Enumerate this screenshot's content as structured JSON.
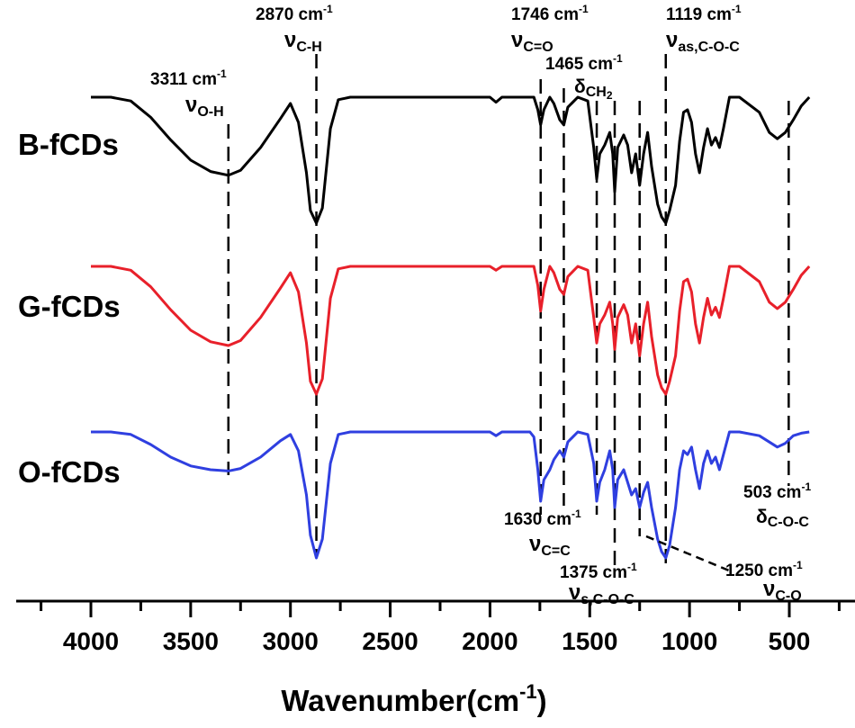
{
  "chart_data": {
    "type": "line",
    "title": "",
    "xlabel": "Wavenumber(cm",
    "xlabel_sup": "-1",
    "xlabel_close": ")",
    "ylabel": "",
    "xlim": [
      4200,
      350
    ],
    "x_reversed": true,
    "x_ticks": [
      4000,
      3500,
      3000,
      2500,
      2000,
      1500,
      1000,
      500
    ],
    "grid": false,
    "series": [
      {
        "name": "B-fCDs",
        "color": "#000000",
        "points": [
          [
            4000,
            100
          ],
          [
            3900,
            100
          ],
          [
            3800,
            97
          ],
          [
            3700,
            84
          ],
          [
            3600,
            66
          ],
          [
            3500,
            50
          ],
          [
            3400,
            41
          ],
          [
            3311,
            38
          ],
          [
            3250,
            42
          ],
          [
            3150,
            60
          ],
          [
            3050,
            83
          ],
          [
            3000,
            95
          ],
          [
            2960,
            80
          ],
          [
            2920,
            40
          ],
          [
            2900,
            10
          ],
          [
            2870,
            0
          ],
          [
            2840,
            12
          ],
          [
            2800,
            75
          ],
          [
            2760,
            98
          ],
          [
            2700,
            100
          ],
          [
            2300,
            100
          ],
          [
            2000,
            100
          ],
          [
            1970,
            96
          ],
          [
            1940,
            100
          ],
          [
            1780,
            100
          ],
          [
            1760,
            90
          ],
          [
            1746,
            78
          ],
          [
            1730,
            90
          ],
          [
            1700,
            100
          ],
          [
            1680,
            95
          ],
          [
            1650,
            82
          ],
          [
            1630,
            78
          ],
          [
            1610,
            92
          ],
          [
            1560,
            100
          ],
          [
            1510,
            97
          ],
          [
            1480,
            60
          ],
          [
            1465,
            35
          ],
          [
            1450,
            55
          ],
          [
            1425,
            62
          ],
          [
            1400,
            72
          ],
          [
            1385,
            55
          ],
          [
            1375,
            25
          ],
          [
            1360,
            60
          ],
          [
            1330,
            70
          ],
          [
            1310,
            62
          ],
          [
            1290,
            40
          ],
          [
            1270,
            55
          ],
          [
            1250,
            30
          ],
          [
            1230,
            55
          ],
          [
            1210,
            72
          ],
          [
            1190,
            45
          ],
          [
            1160,
            15
          ],
          [
            1140,
            5
          ],
          [
            1119,
            0
          ],
          [
            1100,
            10
          ],
          [
            1070,
            30
          ],
          [
            1050,
            65
          ],
          [
            1030,
            88
          ],
          [
            1010,
            90
          ],
          [
            990,
            80
          ],
          [
            970,
            55
          ],
          [
            950,
            40
          ],
          [
            930,
            60
          ],
          [
            910,
            75
          ],
          [
            890,
            62
          ],
          [
            870,
            68
          ],
          [
            850,
            60
          ],
          [
            830,
            75
          ],
          [
            800,
            100
          ],
          [
            750,
            100
          ],
          [
            650,
            88
          ],
          [
            600,
            72
          ],
          [
            560,
            67
          ],
          [
            520,
            72
          ],
          [
            480,
            82
          ],
          [
            440,
            93
          ],
          [
            400,
            100
          ]
        ]
      },
      {
        "name": "G-fCDs",
        "color": "#e8202a",
        "points": [
          [
            4000,
            100
          ],
          [
            3900,
            100
          ],
          [
            3800,
            97
          ],
          [
            3700,
            84
          ],
          [
            3600,
            66
          ],
          [
            3500,
            50
          ],
          [
            3400,
            41
          ],
          [
            3311,
            38
          ],
          [
            3250,
            42
          ],
          [
            3150,
            60
          ],
          [
            3050,
            83
          ],
          [
            3000,
            95
          ],
          [
            2960,
            80
          ],
          [
            2920,
            40
          ],
          [
            2900,
            10
          ],
          [
            2870,
            0
          ],
          [
            2840,
            12
          ],
          [
            2800,
            75
          ],
          [
            2760,
            98
          ],
          [
            2700,
            100
          ],
          [
            2300,
            100
          ],
          [
            2000,
            100
          ],
          [
            1970,
            97
          ],
          [
            1940,
            100
          ],
          [
            1780,
            100
          ],
          [
            1760,
            85
          ],
          [
            1746,
            65
          ],
          [
            1730,
            82
          ],
          [
            1700,
            100
          ],
          [
            1680,
            95
          ],
          [
            1650,
            82
          ],
          [
            1630,
            78
          ],
          [
            1610,
            92
          ],
          [
            1560,
            100
          ],
          [
            1510,
            97
          ],
          [
            1480,
            60
          ],
          [
            1465,
            40
          ],
          [
            1450,
            55
          ],
          [
            1425,
            62
          ],
          [
            1400,
            72
          ],
          [
            1385,
            55
          ],
          [
            1375,
            35
          ],
          [
            1360,
            60
          ],
          [
            1330,
            70
          ],
          [
            1310,
            62
          ],
          [
            1290,
            40
          ],
          [
            1270,
            55
          ],
          [
            1250,
            30
          ],
          [
            1230,
            55
          ],
          [
            1210,
            72
          ],
          [
            1190,
            45
          ],
          [
            1160,
            15
          ],
          [
            1140,
            5
          ],
          [
            1119,
            0
          ],
          [
            1100,
            10
          ],
          [
            1070,
            30
          ],
          [
            1050,
            65
          ],
          [
            1030,
            88
          ],
          [
            1010,
            90
          ],
          [
            990,
            80
          ],
          [
            970,
            55
          ],
          [
            950,
            40
          ],
          [
            930,
            60
          ],
          [
            910,
            75
          ],
          [
            890,
            62
          ],
          [
            870,
            68
          ],
          [
            850,
            60
          ],
          [
            830,
            75
          ],
          [
            800,
            100
          ],
          [
            750,
            100
          ],
          [
            650,
            88
          ],
          [
            600,
            72
          ],
          [
            560,
            67
          ],
          [
            520,
            72
          ],
          [
            480,
            82
          ],
          [
            440,
            93
          ],
          [
            400,
            100
          ]
        ]
      },
      {
        "name": "O-fCDs",
        "color": "#2f3fe0",
        "points": [
          [
            4000,
            100
          ],
          [
            3900,
            100
          ],
          [
            3800,
            98
          ],
          [
            3700,
            90
          ],
          [
            3600,
            80
          ],
          [
            3500,
            73
          ],
          [
            3400,
            70
          ],
          [
            3311,
            69
          ],
          [
            3250,
            71
          ],
          [
            3150,
            80
          ],
          [
            3050,
            93
          ],
          [
            3000,
            98
          ],
          [
            2960,
            85
          ],
          [
            2920,
            50
          ],
          [
            2900,
            18
          ],
          [
            2870,
            0
          ],
          [
            2840,
            15
          ],
          [
            2800,
            75
          ],
          [
            2760,
            98
          ],
          [
            2700,
            100
          ],
          [
            2300,
            100
          ],
          [
            2000,
            100
          ],
          [
            1970,
            97
          ],
          [
            1940,
            100
          ],
          [
            1800,
            100
          ],
          [
            1780,
            96
          ],
          [
            1760,
            70
          ],
          [
            1746,
            45
          ],
          [
            1730,
            62
          ],
          [
            1700,
            70
          ],
          [
            1680,
            78
          ],
          [
            1650,
            85
          ],
          [
            1630,
            80
          ],
          [
            1610,
            92
          ],
          [
            1560,
            100
          ],
          [
            1510,
            98
          ],
          [
            1480,
            75
          ],
          [
            1465,
            45
          ],
          [
            1450,
            60
          ],
          [
            1425,
            70
          ],
          [
            1400,
            85
          ],
          [
            1385,
            70
          ],
          [
            1375,
            40
          ],
          [
            1360,
            62
          ],
          [
            1330,
            70
          ],
          [
            1310,
            60
          ],
          [
            1290,
            50
          ],
          [
            1270,
            55
          ],
          [
            1250,
            40
          ],
          [
            1230,
            52
          ],
          [
            1210,
            60
          ],
          [
            1190,
            40
          ],
          [
            1160,
            15
          ],
          [
            1140,
            5
          ],
          [
            1119,
            0
          ],
          [
            1100,
            10
          ],
          [
            1070,
            40
          ],
          [
            1050,
            70
          ],
          [
            1030,
            85
          ],
          [
            1010,
            82
          ],
          [
            990,
            88
          ],
          [
            970,
            70
          ],
          [
            950,
            55
          ],
          [
            930,
            75
          ],
          [
            910,
            85
          ],
          [
            890,
            75
          ],
          [
            870,
            80
          ],
          [
            850,
            70
          ],
          [
            830,
            82
          ],
          [
            800,
            100
          ],
          [
            750,
            100
          ],
          [
            650,
            97
          ],
          [
            600,
            92
          ],
          [
            560,
            88
          ],
          [
            520,
            91
          ],
          [
            480,
            97
          ],
          [
            440,
            99
          ],
          [
            400,
            100
          ]
        ]
      }
    ],
    "series_labels": [
      "B-fCDs",
      "G-fCDs",
      "O-fCDs"
    ],
    "annotations": [
      {
        "value": "3311 cm",
        "sup": "-1",
        "symbol": "ν",
        "sub": "O-H"
      },
      {
        "value": "2870 cm",
        "sup": "-1",
        "symbol": "ν",
        "sub": "C-H"
      },
      {
        "value": "1746 cm",
        "sup": "-1",
        "symbol": "ν",
        "sub": "C=O"
      },
      {
        "value": "1465 cm",
        "sup": "-1",
        "symbol": "δ",
        "sub": "CH",
        "sub2": "2"
      },
      {
        "value": "1119 cm",
        "sup": "-1",
        "symbol": "ν",
        "sub": "as,C-O-C"
      },
      {
        "value": "1630 cm",
        "sup": "-1",
        "symbol": "ν",
        "sub": "C=C"
      },
      {
        "value": "1375 cm",
        "sup": "-1",
        "symbol": "ν",
        "sub": "s,C-O-C"
      },
      {
        "value": "1250 cm",
        "sup": "-1",
        "symbol": "ν",
        "sub": "C-O"
      },
      {
        "value": "503 cm",
        "sup": "-1",
        "symbol": "δ",
        "sub": "C-O-C"
      }
    ],
    "dashed_lines_at": [
      3311,
      2870,
      1746,
      1630,
      1465,
      1375,
      1250,
      1119,
      503
    ]
  }
}
